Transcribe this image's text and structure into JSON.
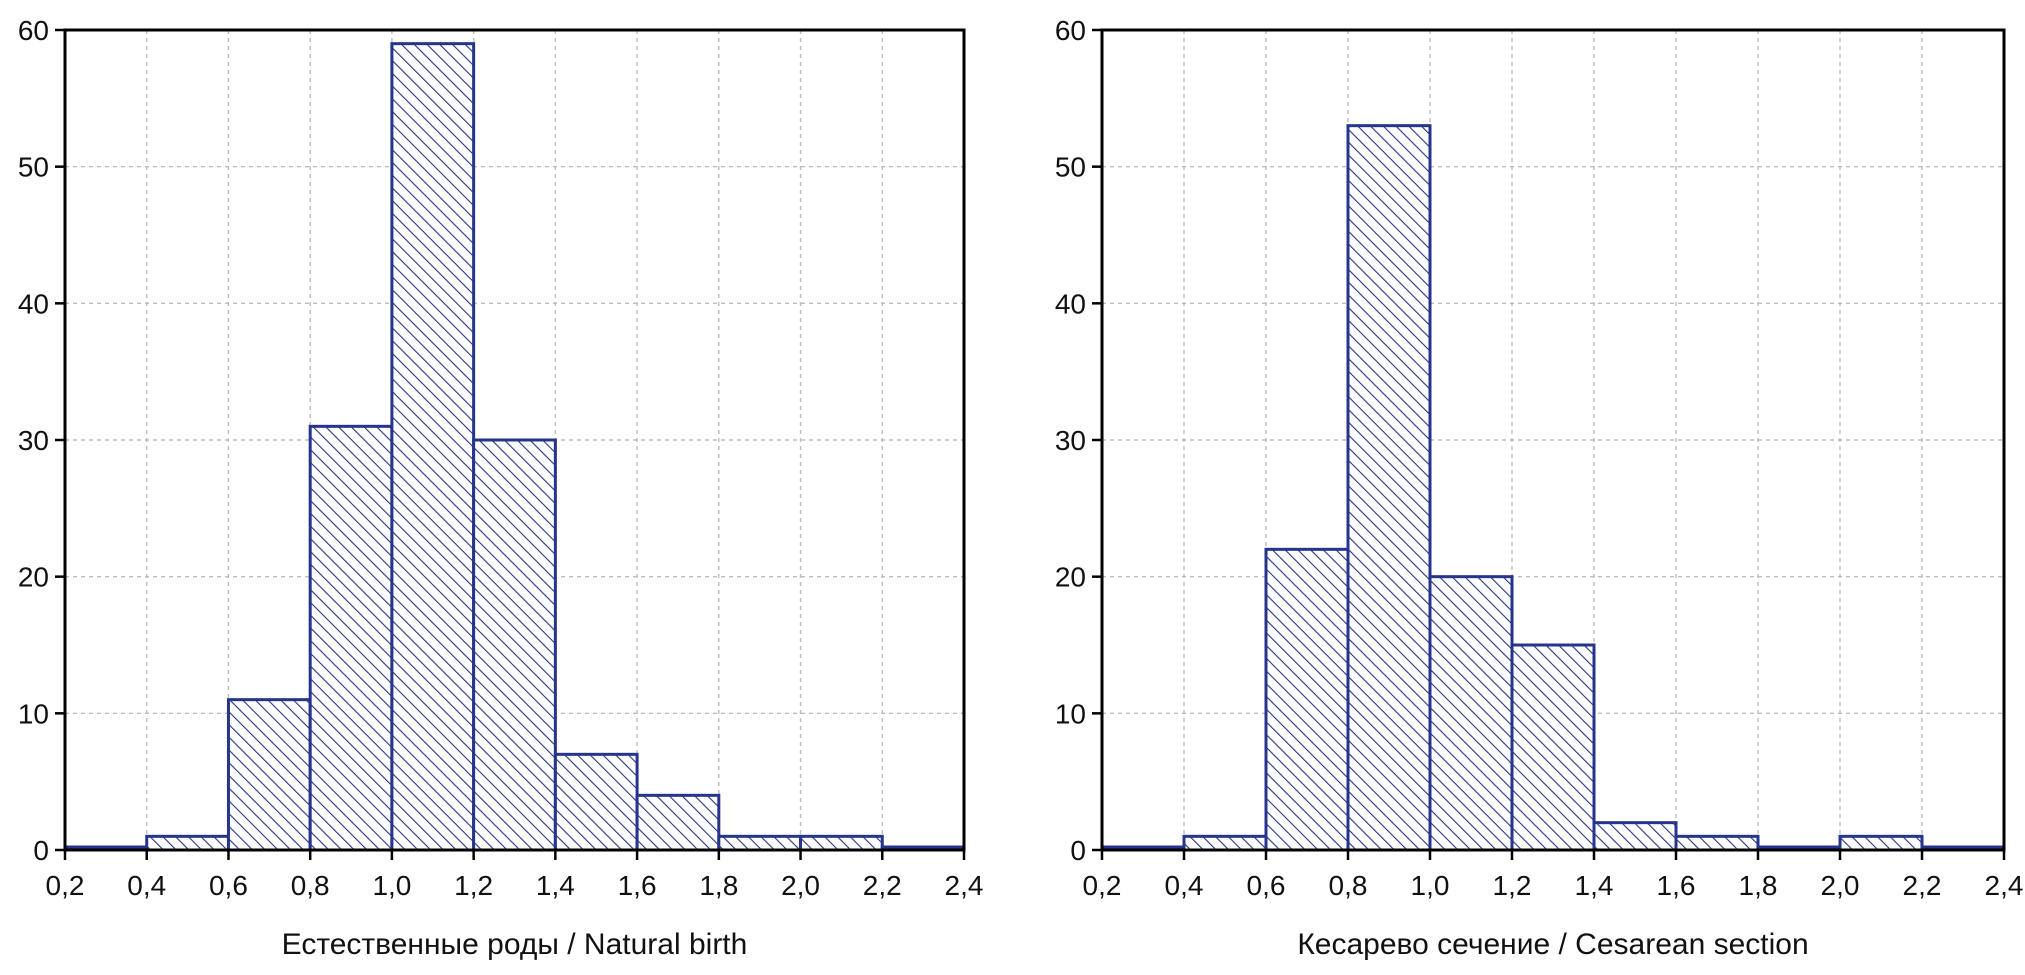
{
  "chart_data": [
    {
      "type": "bar",
      "variant": "histogram",
      "title": "",
      "xlabel": "Естественные роды / Natural birth",
      "ylabel": "",
      "bin_edges": [
        0.2,
        0.4,
        0.6,
        0.8,
        1.0,
        1.2,
        1.4,
        1.6,
        1.8,
        2.0,
        2.2,
        2.4
      ],
      "values": [
        0,
        1,
        11,
        31,
        59,
        30,
        7,
        4,
        1,
        1,
        0
      ],
      "xlim": [
        0.2,
        2.4
      ],
      "ylim": [
        0,
        60
      ],
      "xticks": [
        "0,2",
        "0,4",
        "0,6",
        "0,8",
        "1,0",
        "1,2",
        "1,4",
        "1,6",
        "1,8",
        "2,0",
        "2,2",
        "2,4"
      ],
      "yticks": [
        "0",
        "10",
        "20",
        "30",
        "40",
        "50",
        "60"
      ],
      "grid": true
    },
    {
      "type": "bar",
      "variant": "histogram",
      "title": "",
      "xlabel": "Кесарево сечение / Cesarean section",
      "ylabel": "",
      "bin_edges": [
        0.2,
        0.4,
        0.6,
        0.8,
        1.0,
        1.2,
        1.4,
        1.6,
        1.8,
        2.0,
        2.2,
        2.4
      ],
      "values": [
        0,
        1,
        22,
        53,
        20,
        15,
        2,
        1,
        0,
        1,
        0
      ],
      "xlim": [
        0.2,
        2.4
      ],
      "ylim": [
        0,
        60
      ],
      "xticks": [
        "0,2",
        "0,4",
        "0,6",
        "0,8",
        "1,0",
        "1,2",
        "1,4",
        "1,6",
        "1,8",
        "2,0",
        "2,2",
        "2,4"
      ],
      "yticks": [
        "0",
        "10",
        "20",
        "30",
        "40",
        "50",
        "60"
      ],
      "grid": true
    }
  ],
  "colors": {
    "bar_edge": "#27348b",
    "hatch": "#27348b",
    "bar_fill": "#ffffff",
    "grid": "#bdbdbd",
    "axis": "#000000"
  }
}
